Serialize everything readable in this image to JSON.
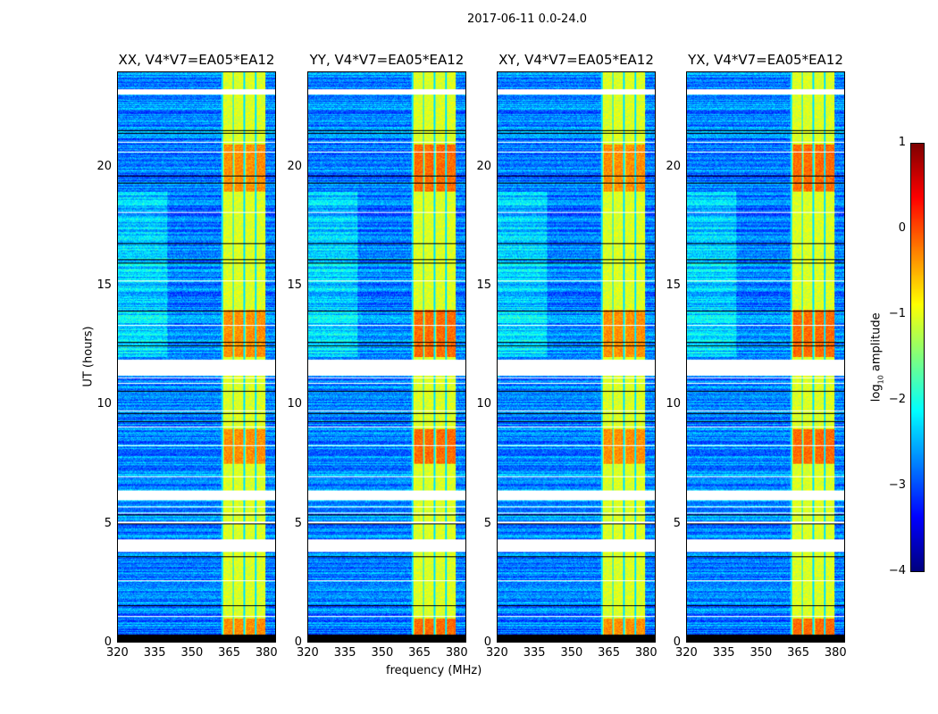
{
  "chart_data": {
    "type": "heatmap",
    "title": "2017-06-11 0.0-24.0",
    "xlabel": "frequency (MHz)",
    "ylabel": "UT (hours)",
    "xlim": [
      320,
      384
    ],
    "ylim": [
      0,
      24
    ],
    "xticks": [
      "320",
      "335",
      "350",
      "365",
      "380"
    ],
    "yticks": [
      "0",
      "5",
      "10",
      "15",
      "20"
    ],
    "panels": [
      {
        "title": "XX, V4*V7=EA05*EA12"
      },
      {
        "title": "YY, V4*V7=EA05*EA12"
      },
      {
        "title": "XY, V4*V7=EA05*EA12"
      },
      {
        "title": "YX, V4*V7=EA05*EA12"
      }
    ],
    "bright_band_mhz": [
      362,
      380
    ],
    "flagged_hours": [
      [
        3.8,
        4.35
      ],
      [
        6.0,
        6.4
      ],
      [
        11.25,
        11.9
      ],
      [
        23.1,
        23.3
      ]
    ],
    "colorbar": {
      "label": "log10 amplitude",
      "label_main": "log",
      "label_sub": "10",
      "label_rest": " amplitude",
      "range": [
        -4,
        1
      ],
      "ticks": [
        "1",
        "0",
        "−1",
        "−2",
        "−3",
        "−4"
      ],
      "colormap": "jet"
    }
  }
}
